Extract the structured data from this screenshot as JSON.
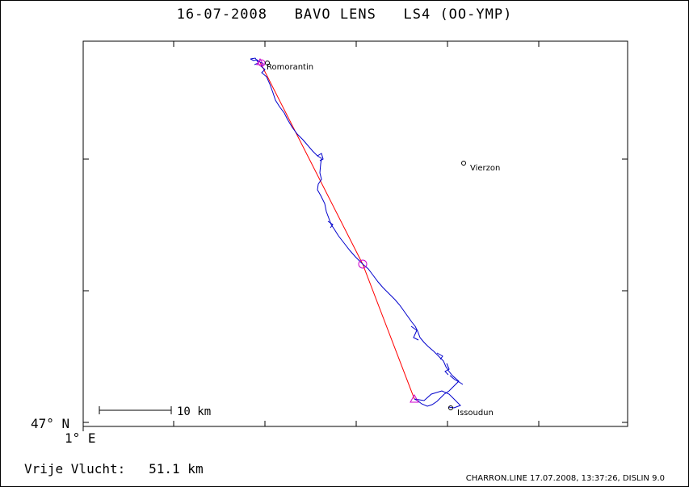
{
  "title": "16-07-2008   BAVO LENS   LS4 (OO-YMP)",
  "axes": {
    "lat_label": "47° N",
    "lon_label": "1° E"
  },
  "scale_bar": {
    "label": "10 km"
  },
  "towns": [
    {
      "name": "Romorantin"
    },
    {
      "name": "Vierzon"
    },
    {
      "name": "Issoudun"
    }
  ],
  "task": {
    "start_marker": "triangle",
    "turnpoint_marker": "circle",
    "finish_marker": "circle"
  },
  "distance": {
    "label": "Vrije Vlucht:",
    "value": "51.1 km"
  },
  "footer": "CHARRON.LINE 17.07.2008, 13:37:26, DISLIN 9.0",
  "colors": {
    "track": "#0000cc",
    "task_line": "#ff0000",
    "task_marker": "#cc00cc",
    "frame": "#000000"
  }
}
